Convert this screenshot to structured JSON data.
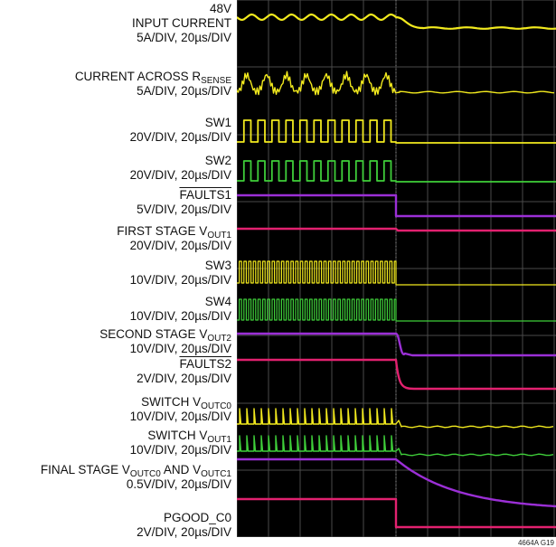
{
  "chart_data": {
    "type": "line",
    "title": "",
    "figure_id": "4664A G19",
    "colors": {
      "background": "#000000",
      "grid": "#4a4a4a",
      "yellow": "#f2ea1e",
      "green": "#3fcf3a",
      "purple": "#9b2fd6",
      "magenta": "#e2216f"
    },
    "grid": true,
    "time_axis": {
      "unit": "µs",
      "per_division": 20,
      "divisions": 10
    },
    "traces": [
      {
        "id": "input-current",
        "color": "yellow",
        "label": [
          {
            "t": "48V"
          },
          {
            "t": "INPUT CURRENT"
          },
          {
            "t": "5A/DIV, 20µs/DIV"
          }
        ]
      },
      {
        "id": "current-across-rsense",
        "color": "yellow",
        "label": [
          {
            "t": "CURRENT ACROSS R",
            "sub": "SENSE"
          },
          {
            "t": "5A/DIV, 20µs/DIV"
          }
        ]
      },
      {
        "id": "sw1",
        "color": "yellow",
        "label": [
          {
            "t": "SW1"
          },
          {
            "t": "20V/DIV, 20µs/DIV"
          }
        ]
      },
      {
        "id": "sw2",
        "color": "green",
        "label": [
          {
            "t": "SW2"
          },
          {
            "t": "20V/DIV, 20µs/DIV"
          }
        ]
      },
      {
        "id": "faults1",
        "color": "purple",
        "label": [
          {
            "t": "FAULTS1",
            "overline": true
          },
          {
            "t": "5V/DIV, 20µs/DIV"
          }
        ]
      },
      {
        "id": "first-stage-vout1",
        "color": "magenta",
        "label": [
          {
            "t": "FIRST STAGE V",
            "sub": "OUT1"
          },
          {
            "t": "20V/DIV, 20µs/DIV"
          }
        ]
      },
      {
        "id": "sw3",
        "color": "yellow",
        "label": [
          {
            "t": "SW3"
          },
          {
            "t": "10V/DIV, 20µs/DIV"
          }
        ]
      },
      {
        "id": "sw4",
        "color": "green",
        "label": [
          {
            "t": "SW4"
          },
          {
            "t": "10V/DIV, 20µs/DIV"
          }
        ]
      },
      {
        "id": "second-stage-vout2",
        "color": "purple",
        "label": [
          {
            "t": "SECOND STAGE V",
            "sub": "OUT2"
          },
          {
            "t": "10V/DIV, 20µs/DIV"
          }
        ]
      },
      {
        "id": "faults2",
        "color": "magenta",
        "label": [
          {
            "t": "FAULTS2",
            "overline": true
          },
          {
            "t": "2V/DIV, 20µs/DIV"
          }
        ]
      },
      {
        "id": "switch-voutc0",
        "color": "yellow",
        "label": [
          {
            "t": "SWITCH V",
            "sub": "OUTC0"
          },
          {
            "t": "10V/DIV, 20µs/DIV"
          }
        ]
      },
      {
        "id": "switch-vout1",
        "color": "green",
        "label": [
          {
            "t": "SWITCH V",
            "sub": "OUT1"
          },
          {
            "t": "10V/DIV, 20µs/DIV"
          }
        ]
      },
      {
        "id": "final-stage",
        "color": "purple",
        "label": [
          {
            "t": "FINAL STAGE V",
            "sub": "OUTC0",
            "t2": " AND V",
            "sub2": "OUTC1"
          },
          {
            "t": "0.5V/DIV, 20µs/DIV"
          }
        ]
      },
      {
        "id": "pgood-c0",
        "color": "magenta",
        "label": [
          {
            "t": "PGOOD_C0"
          },
          {
            "t": "2V/DIV, 20µs/DIV"
          }
        ]
      }
    ]
  }
}
